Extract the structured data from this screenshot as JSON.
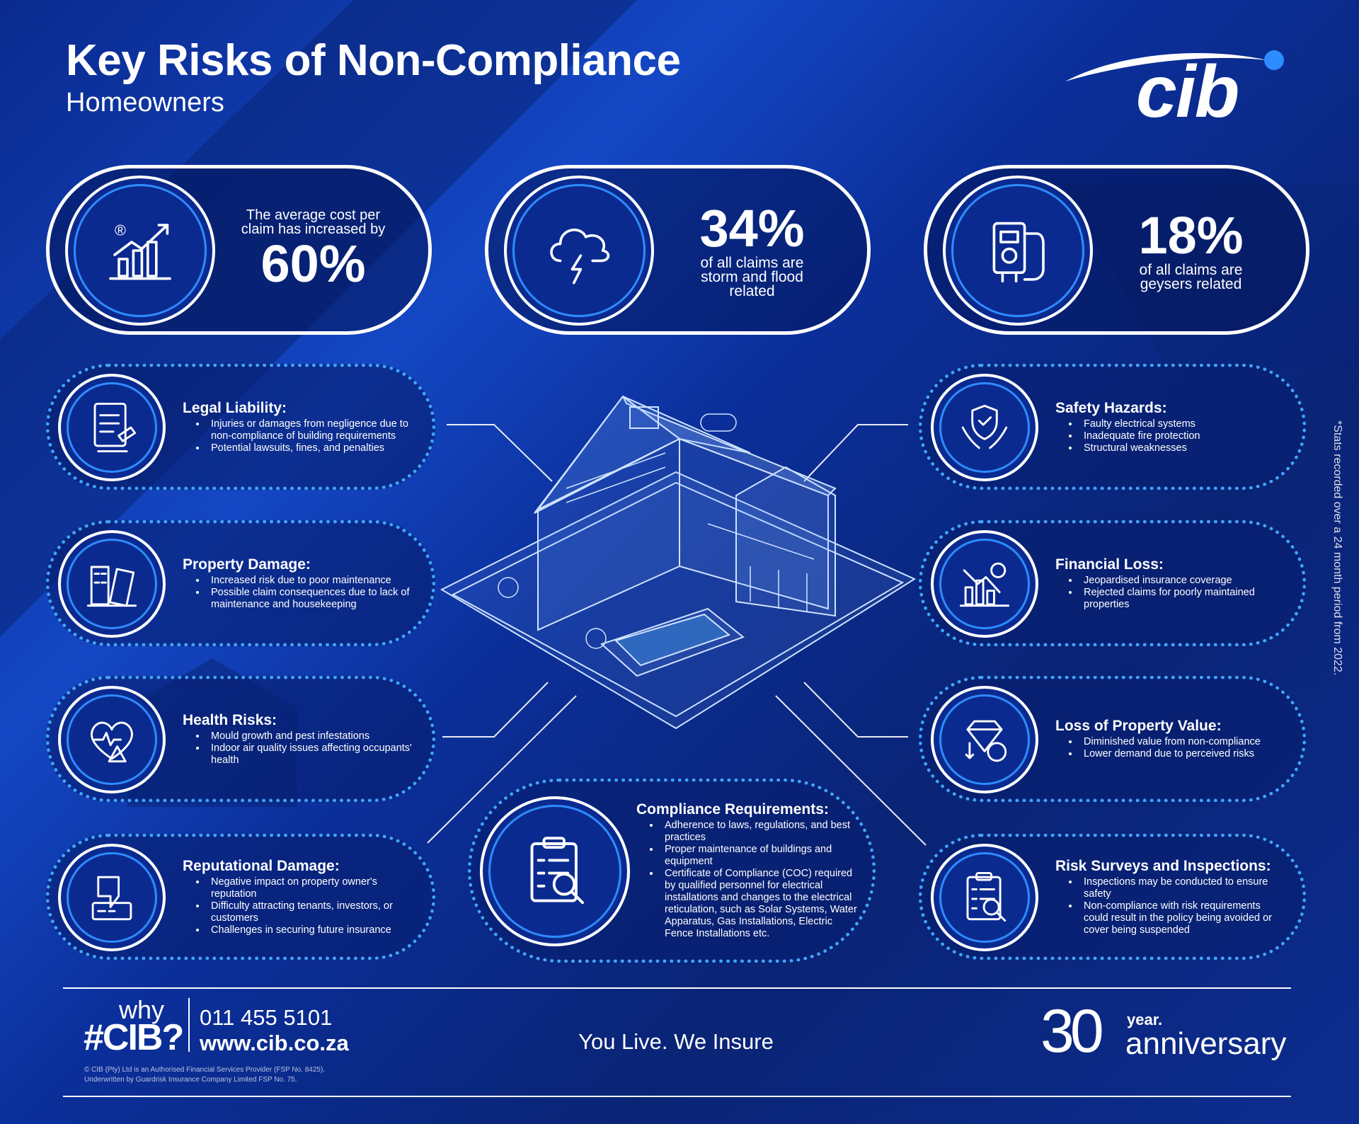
{
  "header": {
    "title": "Key Risks of Non-Compliance",
    "subtitle": "Homeowners",
    "logo": "cib"
  },
  "stats": [
    {
      "lead": "The average cost per claim has increased by",
      "figure": "60%"
    },
    {
      "figure": "34%",
      "text": "of all claims are storm and flood related"
    },
    {
      "figure": "18%",
      "text": "of all claims are geysers related"
    }
  ],
  "risks_left": [
    {
      "title": "Legal Liability:",
      "items": [
        "Injuries or damages from negligence due to non-compliance of building requirements",
        "Potential lawsuits, fines, and penalties"
      ]
    },
    {
      "title": "Property Damage:",
      "items": [
        "Increased risk due to poor maintenance",
        "Possible claim consequences due to lack of maintenance and housekeeping"
      ]
    },
    {
      "title": "Health Risks:",
      "items": [
        "Mould growth and pest infestations",
        "Indoor air quality issues affecting occupants' health"
      ]
    },
    {
      "title": "Reputational Damage:",
      "items": [
        "Negative impact on property owner's reputation",
        "Difficulty attracting tenants, investors, or customers",
        "Challenges in securing future insurance"
      ]
    }
  ],
  "risks_right": [
    {
      "title": "Safety Hazards:",
      "items": [
        "Faulty electrical systems",
        "Inadequate fire protection",
        "Structural weaknesses"
      ]
    },
    {
      "title": "Financial Loss:",
      "items": [
        "Jeopardised insurance coverage",
        "Rejected claims for poorly maintained properties"
      ]
    },
    {
      "title": "Loss of Property Value:",
      "items": [
        "Diminished value from non-compliance",
        "Lower demand due to perceived risks"
      ]
    },
    {
      "title": "Risk Surveys and Inspections:",
      "items": [
        "Inspections may be conducted to ensure safety",
        "Non-compliance with risk requirements could result in the policy being avoided or cover being suspended"
      ]
    }
  ],
  "compliance": {
    "title": "Compliance Requirements:",
    "items": [
      "Adherence to laws, regulations, and best practices",
      "Proper maintenance of buildings and equipment",
      "Certificate of Compliance (COC) required by qualified personnel for electrical installations and changes to the electrical reticulation, such as Solar Systems, Water Apparatus, Gas Installations, Electric Fence Installations etc."
    ]
  },
  "side_note": "*Stats recorded over a 24 month period from 2022.",
  "footer": {
    "why": "why",
    "hash": "#CIB?",
    "phone": "011 455 5101",
    "website": "www.cib.co.za",
    "tagline": "You Live. We Insure",
    "legal": [
      "© CIB (Pty) Ltd is an Authorised Financial Services Provider (FSP No. 8425).",
      "Underwritten by Guardrisk Insurance Company Limited FSP No. 75."
    ],
    "anniversary_number": "30",
    "anniversary_year": "year.",
    "anniversary_word": "anniversary"
  }
}
